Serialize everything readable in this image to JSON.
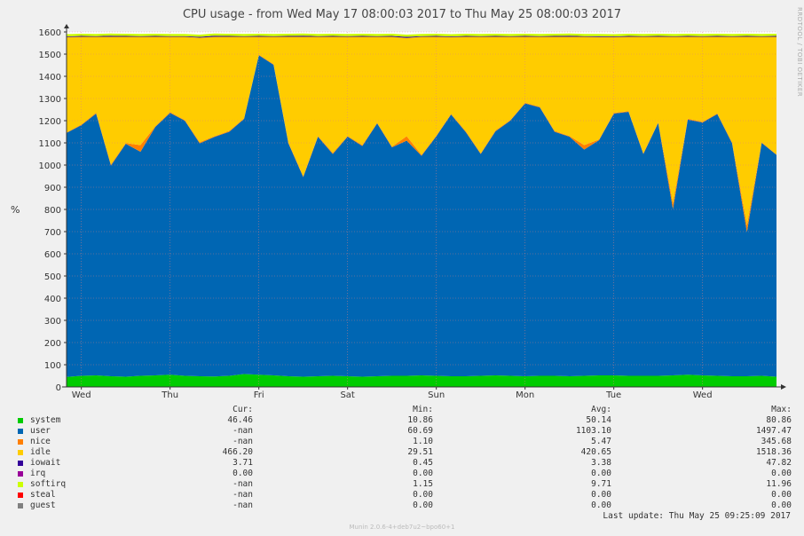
{
  "title": "CPU usage - from Wed May 17 08:00:03 2017 to Thu May 25 08:00:03 2017",
  "side_label": "RRDTOOL / TOBI OETIKER",
  "footer": "Munin 2.0.6-4+deb7u2~bpo60+1",
  "last_update": "Last update:  Thu May 25 09:25:09 2017",
  "legend_headers": {
    "cur": "Cur:",
    "min": "Min:",
    "avg": "Avg:",
    "max": "Max:"
  },
  "legend": [
    {
      "name": "system",
      "color": "#00cc00",
      "cur": "46.46",
      "min": "10.86",
      "avg": "50.14",
      "max": "80.86"
    },
    {
      "name": "user",
      "color": "#0066b3",
      "cur": "-nan",
      "min": "60.69",
      "avg": "1103.10",
      "max": "1497.47"
    },
    {
      "name": "nice",
      "color": "#ff8000",
      "cur": "-nan",
      "min": "1.10",
      "avg": "5.47",
      "max": "345.68"
    },
    {
      "name": "idle",
      "color": "#ffcc00",
      "cur": "466.20",
      "min": "29.51",
      "avg": "420.65",
      "max": "1518.36"
    },
    {
      "name": "iowait",
      "color": "#330099",
      "cur": "3.71",
      "min": "0.45",
      "avg": "3.38",
      "max": "47.82"
    },
    {
      "name": "irq",
      "color": "#990099",
      "cur": "0.00",
      "min": "0.00",
      "avg": "0.00",
      "max": "0.00"
    },
    {
      "name": "softirq",
      "color": "#ccff00",
      "cur": "-nan",
      "min": "1.15",
      "avg": "9.71",
      "max": "11.96"
    },
    {
      "name": "steal",
      "color": "#ff0000",
      "cur": "-nan",
      "min": "0.00",
      "avg": "0.00",
      "max": "0.00"
    },
    {
      "name": "guest",
      "color": "#808080",
      "cur": "-nan",
      "min": "0.00",
      "avg": "0.00",
      "max": "0.00"
    }
  ],
  "chart_data": {
    "type": "area",
    "title": "CPU usage - from Wed May 17 08:00:03 2017 to Thu May 25 08:00:03 2017",
    "xlabel": "",
    "ylabel": "%",
    "ylim": [
      0,
      1600
    ],
    "yticks": [
      0,
      100,
      200,
      300,
      400,
      500,
      600,
      700,
      800,
      900,
      1000,
      1100,
      1200,
      1300,
      1400,
      1500,
      1600
    ],
    "xlim": [
      "2017-05-17 08:00",
      "2017-05-25 08:00"
    ],
    "xticks": [
      {
        "label": "Wed",
        "x": "2017-05-17 12:00"
      },
      {
        "label": "Thu",
        "x": "2017-05-18 12:00"
      },
      {
        "label": "Fri",
        "x": "2017-05-19 12:00"
      },
      {
        "label": "Sat",
        "x": "2017-05-20 12:00"
      },
      {
        "label": "Sun",
        "x": "2017-05-21 12:00"
      },
      {
        "label": "Mon",
        "x": "2017-05-22 12:00"
      },
      {
        "label": "Tue",
        "x": "2017-05-23 12:00"
      },
      {
        "label": "Wed",
        "x": "2017-05-24 12:00"
      }
    ],
    "stacked": true,
    "grid": true,
    "x": [
      "2017-05-17 08:00",
      "2017-05-17 12:00",
      "2017-05-17 16:00",
      "2017-05-17 20:00",
      "2017-05-18 00:00",
      "2017-05-18 04:00",
      "2017-05-18 08:00",
      "2017-05-18 12:00",
      "2017-05-18 16:00",
      "2017-05-18 20:00",
      "2017-05-19 00:00",
      "2017-05-19 04:00",
      "2017-05-19 08:00",
      "2017-05-19 12:00",
      "2017-05-19 16:00",
      "2017-05-19 20:00",
      "2017-05-20 00:00",
      "2017-05-20 04:00",
      "2017-05-20 08:00",
      "2017-05-20 12:00",
      "2017-05-20 16:00",
      "2017-05-20 20:00",
      "2017-05-21 00:00",
      "2017-05-21 04:00",
      "2017-05-21 08:00",
      "2017-05-21 12:00",
      "2017-05-21 16:00",
      "2017-05-21 20:00",
      "2017-05-22 00:00",
      "2017-05-22 04:00",
      "2017-05-22 08:00",
      "2017-05-22 12:00",
      "2017-05-22 16:00",
      "2017-05-22 20:00",
      "2017-05-23 00:00",
      "2017-05-23 04:00",
      "2017-05-23 08:00",
      "2017-05-23 12:00",
      "2017-05-23 16:00",
      "2017-05-23 20:00",
      "2017-05-24 00:00",
      "2017-05-24 04:00",
      "2017-05-24 08:00",
      "2017-05-24 12:00",
      "2017-05-24 16:00",
      "2017-05-24 20:00",
      "2017-05-25 00:00",
      "2017-05-25 04:00",
      "2017-05-25 08:00"
    ],
    "series": [
      {
        "name": "system",
        "color": "#00cc00",
        "values": [
          45,
          50,
          52,
          48,
          46,
          50,
          52,
          55,
          50,
          48,
          47,
          50,
          58,
          55,
          52,
          48,
          46,
          48,
          50,
          48,
          46,
          48,
          50,
          50,
          52,
          50,
          48,
          48,
          50,
          52,
          50,
          48,
          50,
          50,
          48,
          50,
          52,
          52,
          50,
          50,
          50,
          52,
          55,
          52,
          50,
          48,
          48,
          50,
          46
        ]
      },
      {
        "name": "user",
        "color": "#0066b3",
        "values": [
          1100,
          1130,
          1180,
          950,
          1050,
          1010,
          1120,
          1180,
          1150,
          1050,
          1080,
          1100,
          1150,
          1440,
          1400,
          1050,
          900,
          1080,
          1000,
          1080,
          1040,
          1140,
          1030,
          1060,
          990,
          1080,
          1180,
          1100,
          1000,
          1100,
          1150,
          1230,
          1210,
          1100,
          1080,
          1020,
          1060,
          1180,
          1190,
          1000,
          1140,
          750,
          1150,
          1140,
          1180,
          1050,
          650,
          1050,
          1000
        ]
      },
      {
        "name": "nice",
        "color": "#ff8000",
        "values": [
          2,
          3,
          4,
          5,
          3,
          30,
          3,
          4,
          3,
          5,
          3,
          4,
          3,
          3,
          3,
          4,
          4,
          3,
          5,
          3,
          4,
          3,
          3,
          20,
          4,
          3,
          3,
          4,
          3,
          4,
          3,
          3,
          3,
          4,
          3,
          20,
          3,
          3,
          3,
          4,
          3,
          25,
          4,
          3,
          3,
          4,
          30,
          3,
          2
        ]
      },
      {
        "name": "idle",
        "color": "#ffcc00",
        "values": [
          430,
          395,
          342,
          575,
          479,
          488,
          403,
          339,
          375,
          471,
          448,
          424,
          367,
          80,
          123,
          476,
          628,
          447,
          523,
          447,
          488,
          387,
          495,
          443,
          532,
          445,
          346,
          426,
          525,
          422,
          375,
          297,
          315,
          424,
          447,
          488,
          462,
          342,
          335,
          524,
          385,
          751,
          369,
          383,
          345,
          476,
          850,
          475,
          530
        ]
      },
      {
        "name": "iowait",
        "color": "#330099",
        "values": [
          3,
          4,
          3,
          5,
          4,
          3,
          4,
          3,
          3,
          4,
          5,
          4,
          3,
          4,
          3,
          4,
          5,
          3,
          4,
          3,
          4,
          3,
          4,
          5,
          3,
          4,
          3,
          4,
          3,
          4,
          3,
          4,
          3,
          4,
          5,
          3,
          4,
          3,
          4,
          3,
          4,
          3,
          4,
          3,
          4,
          3,
          4,
          3,
          4
        ]
      },
      {
        "name": "irq",
        "color": "#990099",
        "values": [
          0,
          0,
          0,
          0,
          0,
          0,
          0,
          0,
          0,
          0,
          0,
          0,
          0,
          0,
          0,
          0,
          0,
          0,
          0,
          0,
          0,
          0,
          0,
          0,
          0,
          0,
          0,
          0,
          0,
          0,
          0,
          0,
          0,
          0,
          0,
          0,
          0,
          0,
          0,
          0,
          0,
          0,
          0,
          0,
          0,
          0,
          0,
          0,
          0
        ]
      },
      {
        "name": "softirq",
        "color": "#ccff00",
        "values": [
          10,
          10,
          10,
          10,
          10,
          10,
          10,
          10,
          10,
          10,
          10,
          10,
          10,
          10,
          10,
          10,
          10,
          10,
          10,
          10,
          10,
          10,
          10,
          10,
          10,
          10,
          10,
          10,
          10,
          10,
          10,
          10,
          10,
          10,
          10,
          10,
          10,
          10,
          10,
          10,
          10,
          10,
          10,
          10,
          10,
          10,
          10,
          10,
          10
        ]
      },
      {
        "name": "steal",
        "color": "#ff0000",
        "values": [
          0,
          0,
          0,
          0,
          0,
          0,
          0,
          0,
          0,
          0,
          0,
          0,
          0,
          0,
          0,
          0,
          0,
          0,
          0,
          0,
          0,
          0,
          0,
          0,
          0,
          0,
          0,
          0,
          0,
          0,
          0,
          0,
          0,
          0,
          0,
          0,
          0,
          0,
          0,
          0,
          0,
          0,
          0,
          0,
          0,
          0,
          0,
          0,
          0
        ]
      },
      {
        "name": "guest",
        "color": "#808080",
        "values": [
          0,
          0,
          0,
          0,
          0,
          0,
          0,
          0,
          0,
          0,
          0,
          0,
          0,
          0,
          0,
          0,
          0,
          0,
          0,
          0,
          0,
          0,
          0,
          0,
          0,
          0,
          0,
          0,
          0,
          0,
          0,
          0,
          0,
          0,
          0,
          0,
          0,
          0,
          0,
          0,
          0,
          0,
          0,
          0,
          0,
          0,
          0,
          0,
          0
        ]
      }
    ]
  }
}
